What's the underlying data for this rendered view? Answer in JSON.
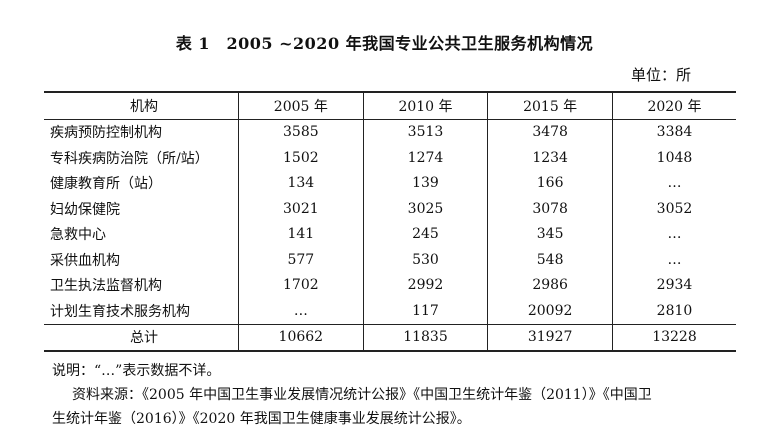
{
  "title": "表 1　2005 ~2020 年我国专业公共卫生服务机构情况",
  "unit": "单位：所",
  "table": {
    "headers": [
      "机构",
      "2005 年",
      "2010 年",
      "2015 年",
      "2020 年"
    ],
    "rows": [
      [
        "疾病预防控制机构",
        "3585",
        "3513",
        "3478",
        "3384"
      ],
      [
        "专科疾病防治院（所/站）",
        "1502",
        "1274",
        "1234",
        "1048"
      ],
      [
        "健康教育所（站）",
        "134",
        "139",
        "166",
        "…"
      ],
      [
        "妇幼保健院",
        "3021",
        "3025",
        "3078",
        "3052"
      ],
      [
        "急救中心",
        "141",
        "245",
        "345",
        "…"
      ],
      [
        "采供血机构",
        "577",
        "530",
        "548",
        "…"
      ],
      [
        "卫生执法监督机构",
        "1702",
        "2992",
        "2986",
        "2934"
      ],
      [
        "计划生育技术服务机构",
        "…",
        "117",
        "20092",
        "2810"
      ]
    ],
    "total": [
      "总计",
      "10662",
      "11835",
      "31927",
      "13228"
    ]
  },
  "notes": {
    "line1": "说明：“…”表示数据不详。",
    "line2": "资料来源：《2005 年中国卫生事业发展情况统计公报》《中国卫生统计年鉴（2011）》《中国卫",
    "line3": "生统计年鉴（2016）》《2020 年我国卫生健康事业发展统计公报》。"
  }
}
